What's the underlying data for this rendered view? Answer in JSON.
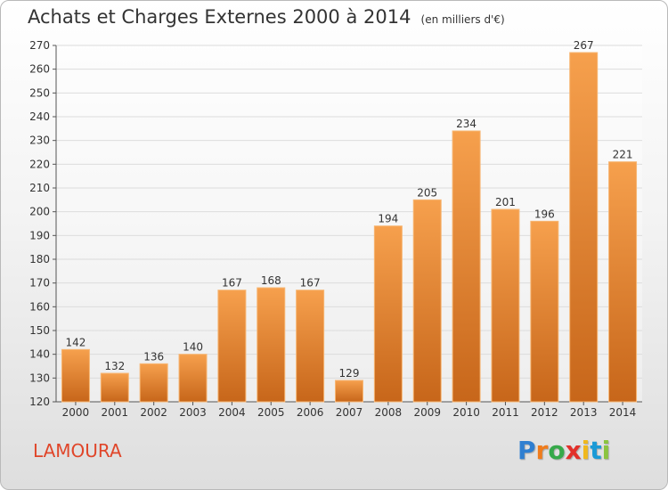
{
  "header": {
    "title": "Achats et Charges Externes 2000 à 2014",
    "unit": "(en milliers d'€)"
  },
  "footer": {
    "commune": "LAMOURA",
    "brand": [
      "P",
      "r",
      "o",
      "x",
      "i",
      "t",
      "i"
    ],
    "brand_colors": [
      "#2f7fd1",
      "#f07c1c",
      "#36a94a",
      "#e2302a",
      "#f0b81c",
      "#1a9ad6",
      "#8bc43f"
    ]
  },
  "chart_data": {
    "type": "bar",
    "categories": [
      "2000",
      "2001",
      "2002",
      "2003",
      "2004",
      "2005",
      "2006",
      "2007",
      "2008",
      "2009",
      "2010",
      "2011",
      "2012",
      "2013",
      "2014"
    ],
    "values": [
      142,
      132,
      136,
      140,
      167,
      168,
      167,
      129,
      194,
      205,
      234,
      201,
      196,
      267,
      221
    ],
    "ylim": [
      120,
      270
    ],
    "yticks": [
      120,
      130,
      140,
      150,
      160,
      170,
      180,
      190,
      200,
      210,
      220,
      230,
      240,
      250,
      260,
      270
    ],
    "grid": true,
    "colors": {
      "bar_light": "#f6a04d",
      "bar_dark": "#c7661a",
      "grid": "#dcdcdc",
      "text": "#333333"
    }
  }
}
